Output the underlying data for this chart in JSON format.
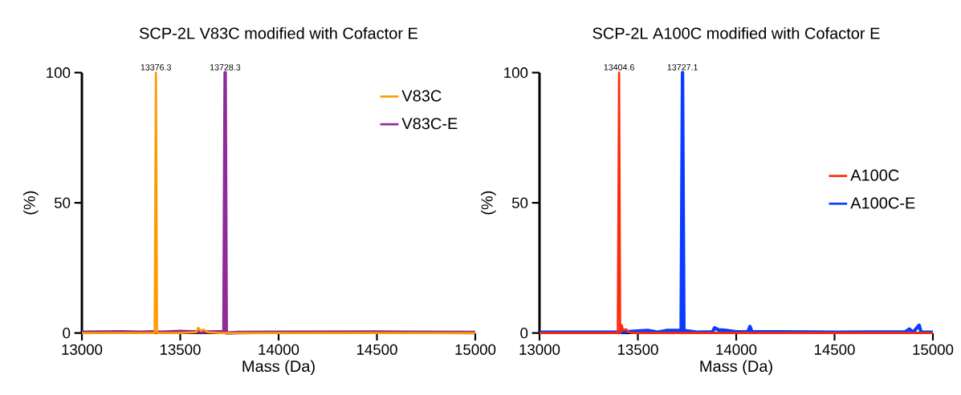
{
  "chart_data": [
    {
      "type": "line",
      "title": "SCP-2L V83C modified with Cofactor E",
      "xlabel": "Mass (Da)",
      "ylabel": "(%)",
      "xlim": [
        13000,
        15000
      ],
      "ylim": [
        0,
        100
      ],
      "xticks": [
        13000,
        13500,
        14000,
        14500,
        15000
      ],
      "yticks": [
        0,
        50,
        100
      ],
      "grid": false,
      "legend": "top right",
      "marker": "none",
      "line_style": "solid",
      "series": [
        {
          "name": "V83C",
          "color": "#ff9a00",
          "x": [
            13000,
            13200,
            13370,
            13376.3,
            13382,
            13500,
            13580,
            13592,
            13605,
            13618,
            13640,
            13700,
            14000,
            14500,
            15000
          ],
          "values": [
            0,
            0,
            0,
            100,
            0,
            0,
            0.3,
            2,
            0.8,
            1.3,
            0.3,
            0,
            0,
            0,
            0
          ]
        },
        {
          "name": "V83C-E",
          "color": "#8e2a9a",
          "x": [
            13000,
            13200,
            13300,
            13360,
            13400,
            13500,
            13600,
            13700,
            13722,
            13728.3,
            13734,
            13800,
            14000,
            14500,
            15000
          ],
          "values": [
            0.3,
            0.5,
            0.3,
            0.5,
            0.3,
            0.6,
            0.4,
            0.5,
            0.5,
            100,
            0,
            0.2,
            0.3,
            0.4,
            0.2
          ]
        }
      ],
      "annotations": [
        {
          "text": "13376.3",
          "x": 13376.3,
          "y": 100
        },
        {
          "text": "13728.3",
          "x": 13728.3,
          "y": 100
        }
      ]
    },
    {
      "type": "line",
      "title": "SCP-2L A100C modified with Cofactor E",
      "xlabel": "Mass (Da)",
      "ylabel": "(%)",
      "xlim": [
        13000,
        15000
      ],
      "ylim": [
        0,
        100
      ],
      "xticks": [
        13000,
        13500,
        14000,
        14500,
        15000
      ],
      "yticks": [
        0,
        50,
        100
      ],
      "grid": false,
      "legend": "right",
      "marker": "none",
      "line_style": "solid",
      "series": [
        {
          "name": "A100C",
          "color": "#ff2a0a",
          "x": [
            13000,
            13200,
            13398,
            13404.6,
            13410,
            13418,
            13425,
            13440,
            13450,
            13470,
            13600,
            14000,
            14500,
            15000
          ],
          "values": [
            0,
            0,
            0,
            100,
            0,
            3,
            1,
            1.5,
            0.5,
            0,
            0,
            0,
            0,
            0
          ]
        },
        {
          "name": "A100C-E",
          "color": "#0a3cff",
          "x": [
            13000,
            13200,
            13400,
            13550,
            13600,
            13650,
            13720,
            13727.1,
            13734,
            13800,
            13880,
            13890,
            13910,
            13950,
            14000,
            14060,
            14070,
            14080,
            14200,
            14500,
            14860,
            14880,
            14900,
            14930,
            14940,
            15000
          ],
          "values": [
            0.3,
            0.3,
            0.3,
            1,
            0.3,
            1,
            1,
            100,
            1,
            0.3,
            0.5,
            2,
            1.2,
            1,
            0.5,
            0.5,
            2.5,
            0.5,
            0.5,
            0.3,
            0.5,
            1.5,
            0.3,
            3,
            0.3,
            0.3
          ]
        }
      ],
      "annotations": [
        {
          "text": "13404.6",
          "x": 13404.6,
          "y": 100
        },
        {
          "text": "13727.1",
          "x": 13727.1,
          "y": 100
        }
      ]
    }
  ]
}
